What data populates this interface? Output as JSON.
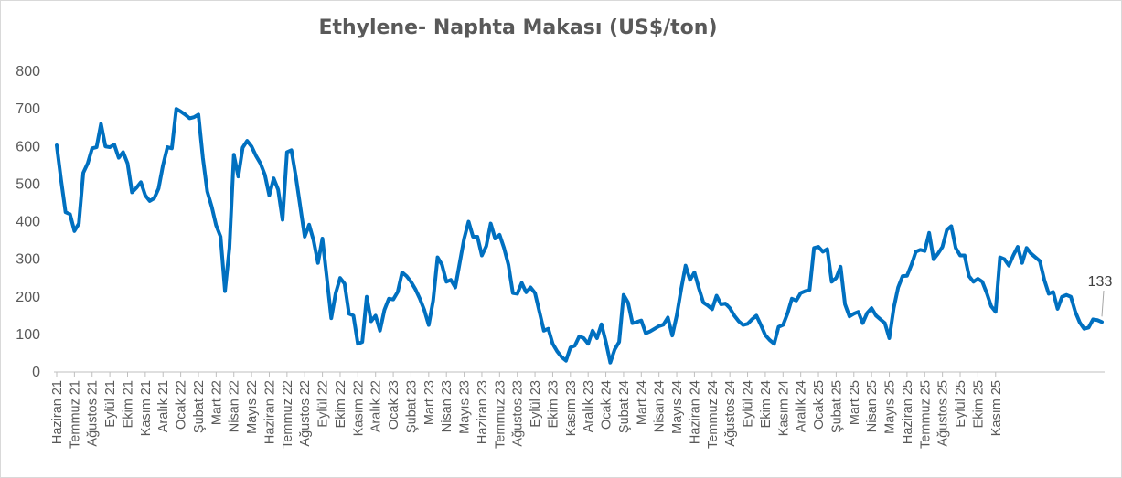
{
  "chart_data": {
    "type": "line",
    "title": "Ethylene- Naphta Makası (US$/ton)",
    "xlabel": "",
    "ylabel": "",
    "ylim": [
      0,
      800
    ],
    "yticks": [
      0,
      100,
      200,
      300,
      400,
      500,
      600,
      700,
      800
    ],
    "grid": false,
    "legend": "none",
    "line_color": "#0070C0",
    "x_tick_labels": [
      "Haziran 21",
      "Temmuz 21",
      "Ağustos 21",
      "Eylül 21",
      "Ekim 21",
      "Kasım 21",
      "Aralık 21",
      "Ocak 22",
      "Şubat 22",
      "Mart 22",
      "Nisan 22",
      "Mayıs 22",
      "Haziran 22",
      "Temmuz 22",
      "Ağustos 22",
      "Eylül 22",
      "Ekim 22",
      "Kasım 22",
      "Aralık 22",
      "Ocak 23",
      "Şubat 23",
      "Mart 23",
      "Nisan 23",
      "Mayıs 23",
      "Haziran 23",
      "Temmuz 23",
      "Ağustos 23",
      "Eylül 23",
      "Ekim 23",
      "Kasım 23",
      "Aralık 23",
      "Ocak 24",
      "Şubat 24",
      "Mart 24",
      "Nisan 24",
      "Mayıs 24",
      "Haziran 24",
      "Temmuz 24",
      "Ağustos 24",
      "Eylül 24",
      "Ekim 24",
      "Kasım 24",
      "Aralık 24",
      "Ocak 25",
      "Şubat 25",
      "Mart 25",
      "Nisan 25",
      "Mayıs 25",
      "Haziran 25",
      "Temmuz 25",
      "Ağustos 25",
      "Eylül 25",
      "Ekim 25",
      "Kasım 25"
    ],
    "points_per_label": 4,
    "series": [
      {
        "values": [
          603,
          510,
          425,
          420,
          375,
          395,
          530,
          555,
          595,
          598,
          660,
          600,
          598,
          605,
          570,
          585,
          555,
          478,
          490,
          505,
          470,
          455,
          462,
          488,
          550,
          598,
          595,
          700,
          693,
          685,
          675,
          678,
          685,
          570,
          480,
          440,
          390,
          360,
          215,
          330,
          578,
          520,
          597,
          615,
          600,
          575,
          555,
          525,
          470,
          515,
          485,
          405,
          585,
          590,
          520,
          440,
          360,
          392,
          350,
          290,
          355,
          250,
          143,
          210,
          250,
          235,
          155,
          150,
          75,
          80,
          200,
          135,
          150,
          110,
          165,
          195,
          193,
          213,
          265,
          255,
          240,
          220,
          195,
          165,
          125,
          190,
          305,
          285,
          240,
          245,
          225,
          290,
          355,
          400,
          360,
          360,
          310,
          335,
          395,
          355,
          365,
          330,
          285,
          210,
          208,
          237,
          212,
          225,
          210,
          160,
          110,
          115,
          75,
          55,
          40,
          30,
          65,
          70,
          95,
          90,
          75,
          110,
          90,
          127,
          80,
          25,
          60,
          80,
          205,
          185,
          130,
          133,
          137,
          103,
          108,
          115,
          122,
          126,
          145,
          97,
          150,
          220,
          283,
          245,
          265,
          223,
          185,
          177,
          167,
          203,
          180,
          182,
          170,
          150,
          135,
          125,
          128,
          140,
          150,
          125,
          98,
          85,
          75,
          120,
          125,
          155,
          195,
          190,
          210,
          215,
          218,
          330,
          333,
          320,
          327,
          240,
          250,
          280,
          180,
          148,
          155,
          160,
          130,
          157,
          170,
          150,
          140,
          130,
          90,
          170,
          225,
          255,
          256,
          285,
          320,
          325,
          322,
          370,
          300,
          315,
          333,
          378,
          388,
          330,
          310,
          310,
          255,
          240,
          248,
          240,
          210,
          175,
          160,
          305,
          300,
          283,
          310,
          333,
          290,
          330,
          315,
          305,
          295,
          245,
          208,
          213,
          168,
          200,
          205,
          200,
          160,
          132,
          115,
          118,
          140,
          138,
          133
        ]
      }
    ],
    "annotations": [
      {
        "label": "133"
      }
    ]
  }
}
